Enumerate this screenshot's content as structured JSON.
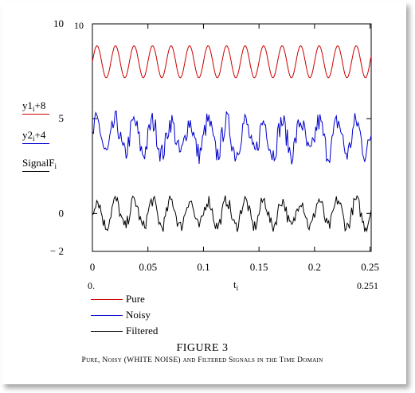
{
  "caption": {
    "title": "FIGURE 3",
    "subtitle": "Pure, Noisy (WHITE NOISE) and Filtered Signals in the Time Domain"
  },
  "left_labels": [
    {
      "expr": "y1",
      "sub": "i",
      "rest": "+8",
      "color": "#cc0000"
    },
    {
      "expr": "y2",
      "sub": "i",
      "rest": "+4",
      "color": "#0000cc"
    },
    {
      "expr": "SignalF",
      "sub": "i",
      "rest": "",
      "color": "#000000"
    }
  ],
  "legend": [
    {
      "label": "Pure",
      "color": "#cc0000"
    },
    {
      "label": "Noisy",
      "color": "#0000cc"
    },
    {
      "label": "Filtered",
      "color": "#000000"
    }
  ],
  "chart_data": {
    "type": "line",
    "xlabel": "t",
    "xlabel_sub": "i",
    "x_range_labels": {
      "left": "0.",
      "right": "0.251"
    },
    "xlim": [
      0,
      0.251
    ],
    "ylim": [
      -2,
      10
    ],
    "x_ticks": [
      0,
      0.05,
      0.1,
      0.15,
      0.2,
      0.25
    ],
    "x_tick_labels": [
      "0",
      "0.05",
      "0.1",
      "0.15",
      "0.2",
      "0.25"
    ],
    "y_ticks": [
      -2,
      0,
      5,
      10
    ],
    "y_tick_labels": [
      "− 2",
      "0",
      "5",
      "10"
    ],
    "y_range_labels": {
      "top": "10",
      "bottom": "− 2"
    },
    "series": [
      {
        "name": "Pure",
        "color": "#cc0000",
        "offset": 8,
        "amplitude": 0.85,
        "frequency": 60,
        "noise": 0
      },
      {
        "name": "Noisy",
        "color": "#0000cc",
        "offset": 4,
        "amplitude": 0.85,
        "frequency": 60,
        "noise": 0.6
      },
      {
        "name": "Filtered",
        "color": "#000000",
        "offset": 0,
        "amplitude": 0.7,
        "frequency": 60,
        "noise": 0.35
      }
    ],
    "samples": 256,
    "grid": false
  }
}
